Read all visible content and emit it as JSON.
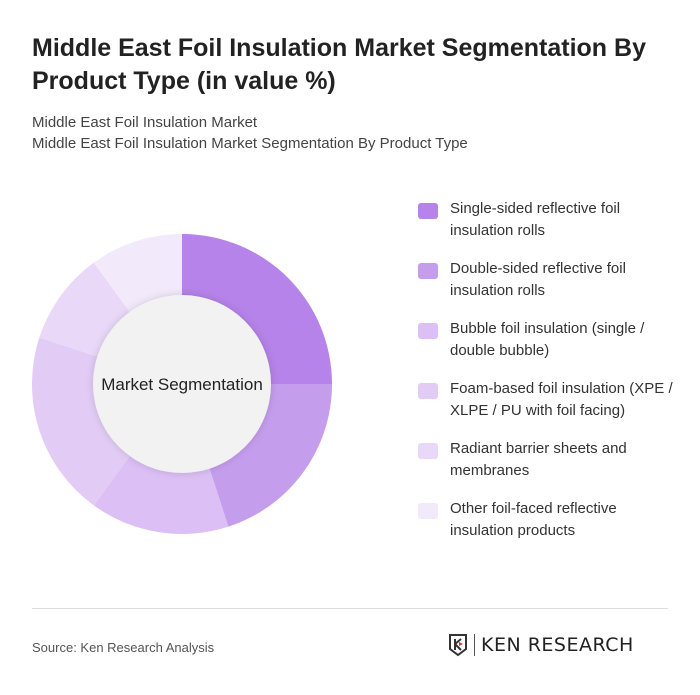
{
  "header": {
    "title": "Middle East Foil Insulation Market Segmentation By Product Type (in value %)",
    "subtitle1": "Middle East Foil Insulation Market",
    "subtitle2": "Middle East Foil Insulation Market Segmentation By Product Type"
  },
  "chart_data": {
    "type": "pie",
    "variant": "donut",
    "center_label": "Market Segmentation",
    "categories": [
      "Single-sided reflective foil insulation rolls",
      "Double-sided reflective foil insulation rolls",
      "Bubble foil insulation (single / double bubble)",
      "Foam-based foil insulation (XPE / XLPE / PU with foil facing)",
      "Radiant barrier sheets and membranes",
      "Other foil-faced reflective insulation products"
    ],
    "values": [
      25,
      20,
      15,
      20,
      10,
      10
    ],
    "colors": [
      "#b583e9",
      "#c59ded",
      "#dbbff5",
      "#e2ccf6",
      "#e9d8f8",
      "#f2eafb"
    ],
    "legend_position": "right"
  },
  "footer": {
    "source": "Source: Ken Research Analysis",
    "logo": "KEN RESEARCH"
  }
}
